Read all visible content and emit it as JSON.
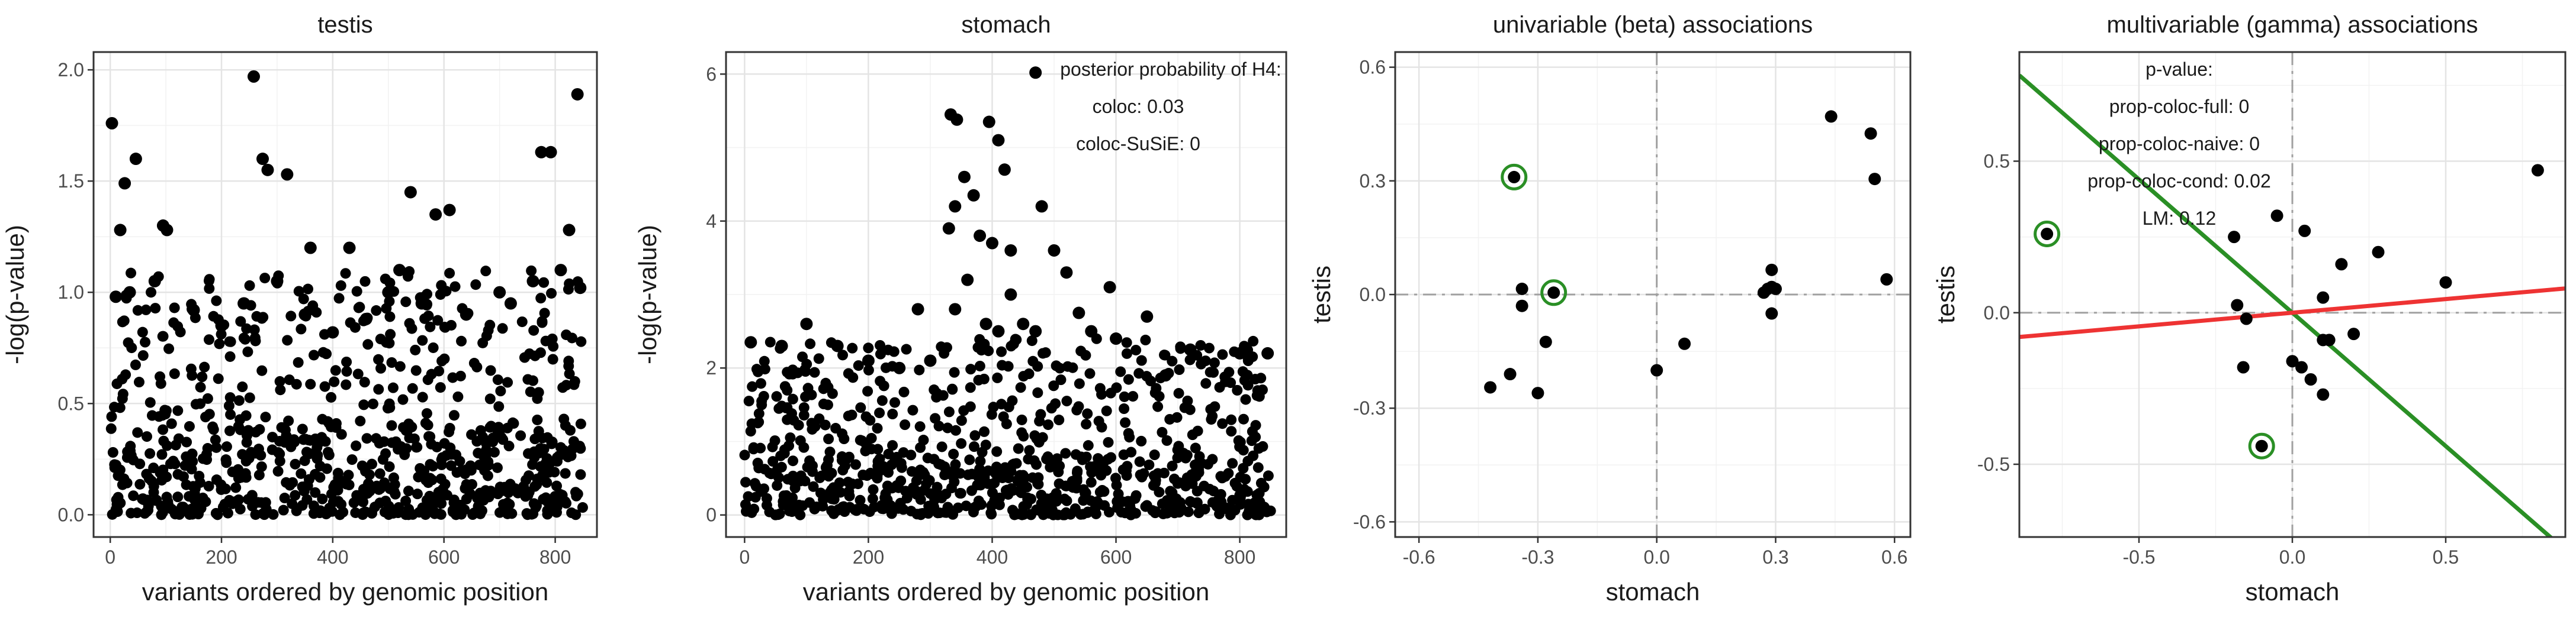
{
  "chart_data": [
    {
      "type": "scatter",
      "title": "testis",
      "xlabel": "variants ordered by genomic position",
      "ylabel": "-log(p-value)",
      "xlim": [
        -30,
        875
      ],
      "ylim": [
        -0.1,
        2.08
      ],
      "xticks": [
        0,
        200,
        400,
        600,
        800
      ],
      "yticks": [
        0.0,
        0.5,
        1.0,
        1.5,
        2.0
      ],
      "xtick_labels": [
        "0",
        "200",
        "400",
        "600",
        "800"
      ],
      "ytick_labels": [
        "0.0",
        "0.5",
        "1.0",
        "1.5",
        "2.0"
      ],
      "n_points": 850,
      "points": [
        [
          3,
          1.76
        ],
        [
          18,
          1.28
        ],
        [
          26,
          1.49
        ],
        [
          46,
          1.6
        ],
        [
          95,
          1.3
        ],
        [
          102,
          1.28
        ],
        [
          258,
          1.97
        ],
        [
          274,
          1.6
        ],
        [
          283,
          1.55
        ],
        [
          318,
          1.53
        ],
        [
          360,
          1.2
        ],
        [
          430,
          1.2
        ],
        [
          540,
          1.45
        ],
        [
          585,
          1.35
        ],
        [
          610,
          1.37
        ],
        [
          775,
          1.63
        ],
        [
          792,
          1.63
        ],
        [
          840,
          1.89
        ],
        [
          825,
          1.28
        ],
        [
          10,
          0.98
        ],
        [
          35,
          1.0
        ],
        [
          80,
          1.05
        ],
        [
          150,
          0.92
        ],
        [
          200,
          0.85
        ],
        [
          240,
          0.95
        ],
        [
          300,
          1.05
        ],
        [
          350,
          0.9
        ],
        [
          400,
          0.82
        ],
        [
          460,
          0.88
        ],
        [
          500,
          1.0
        ],
        [
          520,
          1.1
        ],
        [
          560,
          0.95
        ],
        [
          640,
          0.9
        ],
        [
          700,
          1.0
        ],
        [
          720,
          0.95
        ],
        [
          760,
          1.05
        ],
        [
          810,
          1.1
        ],
        [
          845,
          1.02
        ]
      ],
      "noise": [
        {
          "y_min": 0.0,
          "y_max": 1.1,
          "count": 540
        },
        {
          "y_min": 0.0,
          "y_max": 0.4,
          "count": 260
        }
      ]
    },
    {
      "type": "scatter",
      "title": "stomach",
      "xlabel": "variants ordered by genomic position",
      "ylabel": "-log(p-value)",
      "xlim": [
        -30,
        875
      ],
      "ylim": [
        -0.3,
        6.3
      ],
      "xticks": [
        0,
        200,
        400,
        600,
        800
      ],
      "yticks": [
        0,
        2,
        4,
        6
      ],
      "xtick_labels": [
        "0",
        "200",
        "400",
        "600",
        "800"
      ],
      "ytick_labels": [
        "0",
        "2",
        "4",
        "6"
      ],
      "n_points": 850,
      "annotation": [
        "posterior probability of H4:",
        "coloc: 0.03",
        "coloc-SuSiE: 0"
      ],
      "points": [
        [
          470,
          6.02
        ],
        [
          333,
          5.45
        ],
        [
          343,
          5.38
        ],
        [
          395,
          5.35
        ],
        [
          410,
          5.1
        ],
        [
          420,
          4.7
        ],
        [
          355,
          4.6
        ],
        [
          340,
          4.2
        ],
        [
          370,
          4.35
        ],
        [
          380,
          3.8
        ],
        [
          400,
          3.7
        ],
        [
          330,
          3.9
        ],
        [
          430,
          3.6
        ],
        [
          480,
          4.2
        ],
        [
          500,
          3.6
        ],
        [
          520,
          3.3
        ],
        [
          590,
          3.1
        ],
        [
          280,
          2.8
        ],
        [
          450,
          2.6
        ],
        [
          650,
          2.7
        ],
        [
          720,
          2.25
        ],
        [
          800,
          2.2
        ],
        [
          845,
          2.2
        ],
        [
          10,
          2.35
        ],
        [
          60,
          2.3
        ],
        [
          100,
          2.6
        ],
        [
          150,
          2.3
        ],
        [
          200,
          2.1
        ],
        [
          250,
          2.0
        ],
        [
          300,
          2.1
        ],
        [
          340,
          2.8
        ],
        [
          360,
          3.2
        ],
        [
          390,
          2.6
        ],
        [
          410,
          2.5
        ],
        [
          430,
          3.0
        ],
        [
          470,
          2.5
        ],
        [
          540,
          2.75
        ],
        [
          560,
          2.5
        ],
        [
          600,
          2.4
        ],
        [
          680,
          1.9
        ]
      ],
      "noise": [
        {
          "y_min": 0.0,
          "y_max": 2.4,
          "count": 560
        },
        {
          "y_min": 0.0,
          "y_max": 0.8,
          "count": 250
        }
      ]
    },
    {
      "type": "scatter",
      "title": "univariable (beta) associations",
      "xlabel": "stomach",
      "ylabel": "testis",
      "xlim": [
        -0.66,
        0.64
      ],
      "ylim": [
        -0.64,
        0.64
      ],
      "xticks": [
        -0.6,
        -0.3,
        0.0,
        0.3,
        0.6
      ],
      "yticks": [
        -0.6,
        -0.3,
        0.0,
        0.3,
        0.6
      ],
      "xtick_labels": [
        "-0.6",
        "-0.3",
        "0.0",
        "0.3",
        "0.6"
      ],
      "ytick_labels": [
        "-0.6",
        "-0.3",
        "0.0",
        "0.3",
        "0.6"
      ],
      "points": [
        [
          -0.36,
          0.31
        ],
        [
          -0.26,
          0.005
        ],
        [
          -0.34,
          0.015
        ],
        [
          -0.34,
          -0.03
        ],
        [
          -0.37,
          -0.21
        ],
        [
          -0.42,
          -0.245
        ],
        [
          -0.3,
          -0.26
        ],
        [
          -0.28,
          -0.125
        ],
        [
          0.0,
          -0.2
        ],
        [
          0.07,
          -0.13
        ],
        [
          0.27,
          0.005
        ],
        [
          0.28,
          0.015
        ],
        [
          0.29,
          0.02
        ],
        [
          0.3,
          0.015
        ],
        [
          0.29,
          0.065
        ],
        [
          0.29,
          -0.05
        ],
        [
          0.44,
          0.47
        ],
        [
          0.54,
          0.425
        ],
        [
          0.55,
          0.305
        ],
        [
          0.58,
          0.04
        ]
      ],
      "highlighted": [
        [
          -0.36,
          0.31
        ],
        [
          -0.26,
          0.005
        ]
      ]
    },
    {
      "type": "scatter",
      "title": "multivariable (gamma) associations",
      "xlabel": "stomach",
      "ylabel": "testis",
      "xlim": [
        -0.89,
        0.89
      ],
      "ylim": [
        -0.74,
        0.86
      ],
      "xticks": [
        -0.5,
        0.0,
        0.5
      ],
      "yticks": [
        -0.5,
        0.0,
        0.5
      ],
      "xtick_labels": [
        "-0.5",
        "0.0",
        "0.5"
      ],
      "ytick_labels": [
        "-0.5",
        "0.0",
        "0.5"
      ],
      "annotation": [
        "p-value:",
        "prop-coloc-full: 0",
        "prop-coloc-naive: 0",
        "prop-coloc-cond: 0.02",
        "LM: 0.12"
      ],
      "points": [
        [
          -0.8,
          0.26
        ],
        [
          -0.1,
          -0.44
        ],
        [
          -0.19,
          0.25
        ],
        [
          -0.18,
          0.025
        ],
        [
          -0.15,
          -0.02
        ],
        [
          -0.16,
          -0.18
        ],
        [
          -0.05,
          0.32
        ],
        [
          0.0,
          -0.16
        ],
        [
          0.04,
          0.27
        ],
        [
          0.03,
          -0.18
        ],
        [
          0.06,
          -0.22
        ],
        [
          0.12,
          -0.09
        ],
        [
          0.1,
          -0.27
        ],
        [
          0.1,
          0.05
        ],
        [
          0.16,
          0.16
        ],
        [
          0.2,
          -0.07
        ],
        [
          0.28,
          0.2
        ],
        [
          0.5,
          0.1
        ],
        [
          0.1,
          -0.09
        ],
        [
          0.8,
          0.47
        ]
      ],
      "highlighted": [
        [
          -0.8,
          0.26
        ],
        [
          -0.1,
          -0.44
        ]
      ],
      "lines": [
        {
          "color": "#2a8f25",
          "slope": -0.88,
          "intercept": 0.0,
          "label": "green fit"
        },
        {
          "color": "#ee3333",
          "slope": 0.09,
          "intercept": 0.0,
          "label": "red fit"
        }
      ]
    }
  ]
}
